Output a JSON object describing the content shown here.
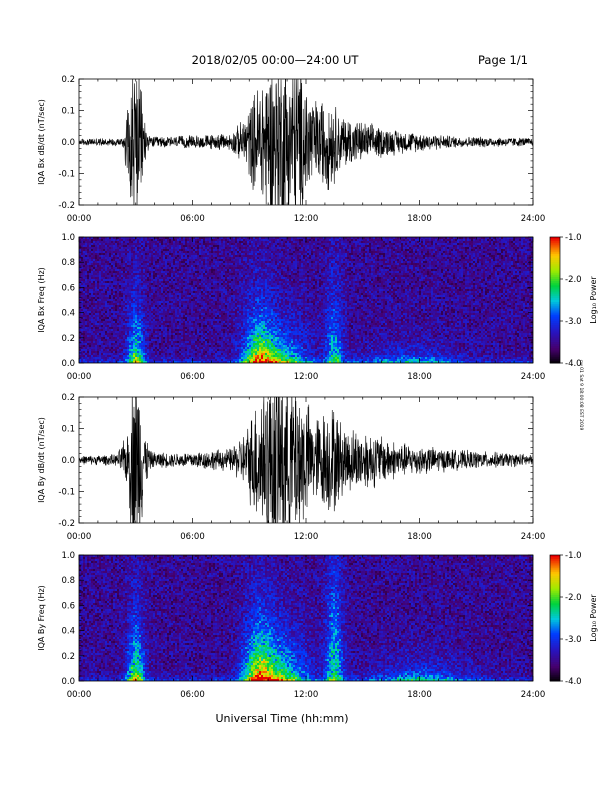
{
  "header": {
    "title": "2018/02/05   00:00—24:00 UT",
    "page": "Page 1/1"
  },
  "side_stamp": "cw 01 Sat 9 18:00:08 EST 2019",
  "chart_data": [
    {
      "type": "line",
      "ylabel": "IQA Bx dB/dt (nT/sec)",
      "xlim": [
        0,
        24
      ],
      "ylim": [
        -0.2,
        0.2
      ],
      "yticks": [
        "0.2",
        "0.1",
        "0.0",
        "-0.1",
        "-0.2"
      ],
      "xticks": [
        "00:00",
        "06:00",
        "12:00",
        "18:00",
        "24:00"
      ],
      "envelope": [
        [
          0.0,
          0.012
        ],
        [
          2.3,
          0.015
        ],
        [
          2.6,
          0.16
        ],
        [
          2.8,
          0.3
        ],
        [
          3.1,
          0.3
        ],
        [
          3.4,
          0.12
        ],
        [
          3.7,
          0.02
        ],
        [
          5.0,
          0.02
        ],
        [
          8.0,
          0.03
        ],
        [
          8.7,
          0.08
        ],
        [
          9.3,
          0.18
        ],
        [
          9.7,
          0.25
        ],
        [
          10.5,
          0.33
        ],
        [
          11.5,
          0.3
        ],
        [
          12.5,
          0.15
        ],
        [
          13.3,
          0.17
        ],
        [
          13.8,
          0.1
        ],
        [
          15.0,
          0.07
        ],
        [
          17.0,
          0.04
        ],
        [
          20.0,
          0.02
        ],
        [
          24.0,
          0.015
        ]
      ]
    },
    {
      "type": "heatmap",
      "ylabel": "IQA Bx Freq (Hz)",
      "xlim": [
        0,
        24
      ],
      "ylim": [
        0.0,
        1.0
      ],
      "yticks": [
        "1.0",
        "0.8",
        "0.6",
        "0.4",
        "0.2",
        "0.0"
      ],
      "xticks": [
        "00:00",
        "06:00",
        "12:00",
        "18:00",
        "24:00"
      ],
      "colorbar": {
        "label": "Log₁₀ Power",
        "ticks": [
          "-1.0",
          "-2.0",
          "-3.0",
          "-4.0"
        ],
        "range": [
          -4.0,
          -1.0
        ]
      },
      "bursts": [
        {
          "t": 3.0,
          "w": 0.45,
          "f": 0.3,
          "amp": 1.6
        },
        {
          "t": 9.5,
          "w": 0.8,
          "f": 0.3,
          "amp": 1.7
        },
        {
          "t": 10.7,
          "w": 1.4,
          "f": 0.2,
          "amp": 1.4
        },
        {
          "t": 13.5,
          "w": 0.45,
          "f": 0.45,
          "amp": 1.1
        },
        {
          "t": 17.5,
          "w": 2.5,
          "f": 0.1,
          "amp": 0.7
        }
      ]
    },
    {
      "type": "line",
      "ylabel": "IQA By dB/dt (nT/sec)",
      "xlim": [
        0,
        24
      ],
      "ylim": [
        -0.2,
        0.2
      ],
      "yticks": [
        "0.2",
        "0.1",
        "0.0",
        "-0.1",
        "-0.2"
      ],
      "xticks": [
        "00:00",
        "06:00",
        "12:00",
        "18:00",
        "24:00"
      ],
      "envelope": [
        [
          0.0,
          0.015
        ],
        [
          2.0,
          0.02
        ],
        [
          2.6,
          0.1
        ],
        [
          2.8,
          0.32
        ],
        [
          3.2,
          0.3
        ],
        [
          3.5,
          0.1
        ],
        [
          3.8,
          0.03
        ],
        [
          5.0,
          0.025
        ],
        [
          8.0,
          0.04
        ],
        [
          8.8,
          0.1
        ],
        [
          9.5,
          0.25
        ],
        [
          10.4,
          0.35
        ],
        [
          11.5,
          0.3
        ],
        [
          12.4,
          0.15
        ],
        [
          13.4,
          0.2
        ],
        [
          14.0,
          0.12
        ],
        [
          15.5,
          0.1
        ],
        [
          17.0,
          0.06
        ],
        [
          20.0,
          0.035
        ],
        [
          24.0,
          0.02
        ]
      ]
    },
    {
      "type": "heatmap",
      "ylabel": "IQA By Freq (Hz)",
      "xlim": [
        0,
        24
      ],
      "ylim": [
        0.0,
        1.0
      ],
      "yticks": [
        "1.0",
        "0.8",
        "0.6",
        "0.4",
        "0.2",
        "0.0"
      ],
      "xticks": [
        "00:00",
        "06:00",
        "12:00",
        "18:00",
        "24:00"
      ],
      "colorbar": {
        "label": "Log₁₀ Power",
        "ticks": [
          "-1.0",
          "-2.0",
          "-3.0",
          "-4.0"
        ],
        "range": [
          -4.0,
          -1.0
        ]
      },
      "bursts": [
        {
          "t": 3.0,
          "w": 0.45,
          "f": 0.35,
          "amp": 1.7
        },
        {
          "t": 9.5,
          "w": 0.8,
          "f": 0.35,
          "amp": 1.8
        },
        {
          "t": 10.7,
          "w": 1.4,
          "f": 0.25,
          "amp": 1.5
        },
        {
          "t": 13.5,
          "w": 0.45,
          "f": 0.7,
          "amp": 1.3
        },
        {
          "t": 18.0,
          "w": 2.5,
          "f": 0.12,
          "amp": 0.8
        }
      ]
    }
  ],
  "xlabel": "Universal Time (hh:mm)"
}
